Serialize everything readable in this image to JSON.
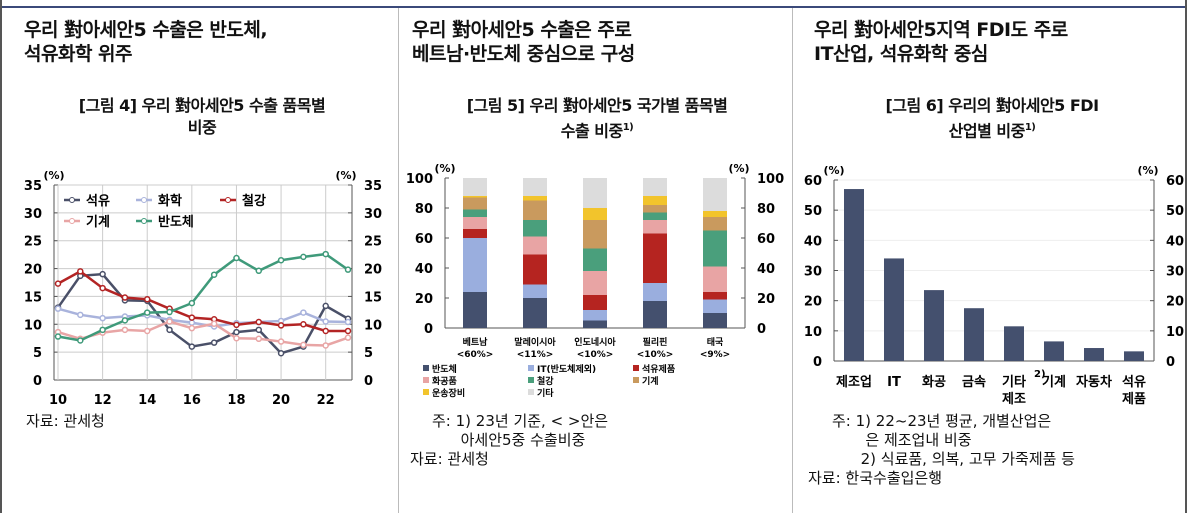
{
  "panels": [
    {
      "heading": [
        "우리 對아세안5 수출은 반도체,",
        "석유화학 위주"
      ],
      "subtitle": [
        "[그림 4] 우리 對아세안5 수출 품목별",
        "비중"
      ],
      "notes": [
        "자료: 관세청"
      ]
    },
    {
      "heading": [
        "우리 對아세안5 수출은 주로",
        "베트남·반도체 중심으로 구성"
      ],
      "subtitle": [
        "[그림 5] 우리 對아세안5 국가별 품목별",
        "수출 비중"
      ],
      "subtitle_sup": "1)",
      "notes": [
        "주: 1) 23년 기준, < >안은",
        "      아세안5중 수출비중",
        "자료: 관세청"
      ]
    },
    {
      "heading": [
        "우리 對아세안5지역 FDI도 주로",
        "IT산업, 석유화학 중심"
      ],
      "subtitle": [
        "[그림 6] 우리의 對아세안5 FDI",
        "산업별 비중"
      ],
      "subtitle_sup": "1)",
      "notes": [
        "주: 1) 22~23년 평균, 개별산업은",
        "       은 제조업내 비중",
        "      2) 식료품, 의복, 고무 가죽제품 등",
        "자료: 한국수출입은행"
      ]
    }
  ],
  "chart_data": [
    {
      "type": "line",
      "unit_left": "(%)",
      "unit_right": "(%)",
      "ylim": [
        0,
        35
      ],
      "yticks": [
        0,
        5,
        10,
        15,
        20,
        25,
        30,
        35
      ],
      "x": [
        10,
        11,
        12,
        13,
        14,
        15,
        16,
        17,
        18,
        19,
        20,
        21,
        22,
        23
      ],
      "xticks": [
        "10",
        "12",
        "14",
        "16",
        "18",
        "20",
        "22"
      ],
      "legend": "top-left",
      "series": [
        {
          "name": "석유",
          "color": "#4a5068",
          "values": [
            13,
            18.7,
            19,
            14.3,
            14.2,
            9,
            6,
            6.7,
            8.6,
            9,
            4.8,
            6,
            13.3,
            11
          ]
        },
        {
          "name": "화학",
          "color": "#a9b3dc",
          "values": [
            12.8,
            11.7,
            11.1,
            11.4,
            11.6,
            10.8,
            10.3,
            9.6,
            10.2,
            10.4,
            10.6,
            12.1,
            10.5,
            10.4
          ]
        },
        {
          "name": "철강",
          "color": "#b32424",
          "values": [
            17.3,
            19.5,
            16.5,
            14.8,
            14.5,
            12.8,
            11.2,
            10.9,
            9.9,
            10.4,
            9.8,
            10.0,
            8.8,
            8.8
          ]
        },
        {
          "name": "기계",
          "color": "#e8a5a5",
          "values": [
            8.6,
            7.4,
            8.5,
            9,
            8.8,
            10.5,
            9.3,
            10.1,
            7.5,
            7.4,
            6.9,
            6.3,
            6.2,
            7.6
          ]
        },
        {
          "name": "반도체",
          "color": "#3f9a7a",
          "values": [
            7.8,
            7.1,
            9,
            10.7,
            12.1,
            12.2,
            13.8,
            18.9,
            21.9,
            19.6,
            21.5,
            22.1,
            22.6,
            19.8
          ]
        }
      ]
    },
    {
      "type": "bar",
      "stacked": true,
      "unit_left": "(%)",
      "unit_right": "(%)",
      "ylim": [
        0,
        100
      ],
      "yticks": [
        0,
        20,
        40,
        60,
        80,
        100
      ],
      "categories": [
        "베트남",
        "말레이시아",
        "인도네시아",
        "필리핀",
        "태국"
      ],
      "category_sub": [
        "<60%>",
        "<11%>",
        "<10%>",
        "<10%>",
        "<9%>"
      ],
      "series": [
        {
          "name": "반도체",
          "color": "#44506e",
          "values": [
            24,
            20,
            5,
            18,
            10
          ]
        },
        {
          "name": "IT(반도체제외)",
          "color": "#9aaede",
          "values": [
            36,
            9,
            7,
            12,
            9
          ]
        },
        {
          "name": "석유제품",
          "color": "#b52420",
          "values": [
            6,
            20,
            10,
            33,
            5
          ]
        },
        {
          "name": "화공품",
          "color": "#e8a4a4",
          "values": [
            8,
            12,
            16,
            9,
            17
          ]
        },
        {
          "name": "철강",
          "color": "#4a9f7c",
          "values": [
            5,
            11,
            15,
            5,
            24
          ]
        },
        {
          "name": "기계",
          "color": "#c99a5e",
          "values": [
            8,
            13,
            19,
            5,
            9
          ]
        },
        {
          "name": "운송장비",
          "color": "#f2c42c",
          "values": [
            1,
            3,
            8,
            6,
            4
          ]
        },
        {
          "name": "기타",
          "color": "#dcdcdc",
          "values": [
            12,
            12,
            20,
            12,
            22
          ]
        }
      ]
    },
    {
      "type": "bar",
      "unit_left": "(%)",
      "unit_right": "(%)",
      "ylim": [
        0,
        60
      ],
      "yticks": [
        0,
        10,
        20,
        30,
        40,
        50,
        60
      ],
      "categories": [
        "제조업",
        "IT",
        "화공",
        "금속",
        "기타",
        "기계",
        "자동차",
        "석유"
      ],
      "category_sub": [
        "",
        "",
        "",
        "",
        "제조",
        "",
        "",
        "제품"
      ],
      "category_sup": [
        "",
        "",
        "",
        "",
        "2)",
        "",
        "",
        ""
      ],
      "color": "#44506e",
      "values": [
        57,
        34,
        23.5,
        17.5,
        11.5,
        6.5,
        4.3,
        3.2
      ]
    }
  ]
}
